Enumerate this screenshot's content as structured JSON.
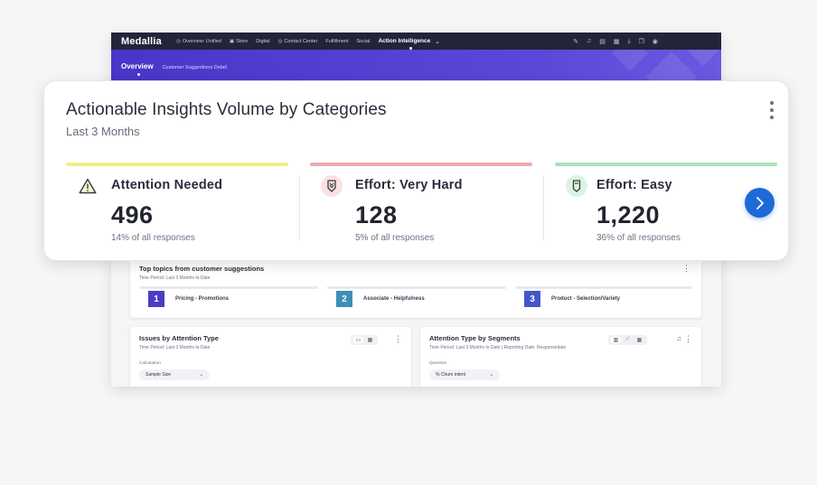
{
  "app": {
    "brand": "Medallia",
    "nav": [
      {
        "label": "Overview: Unified",
        "icon": "overview-icon"
      },
      {
        "label": "Store",
        "icon": "store-icon"
      },
      {
        "label": "Digital",
        "icon": ""
      },
      {
        "label": "Contact Center",
        "icon": "contact-center-icon"
      },
      {
        "label": "Fulfillment",
        "icon": ""
      },
      {
        "label": "Social",
        "icon": ""
      }
    ],
    "active_nav": "Action Intelligence",
    "subtabs": {
      "active": "Overview",
      "other": "Customer Suggestions Detail"
    }
  },
  "topics_panel": {
    "title": "Top topics from customer suggestions",
    "subtitle": "Time Period: Last 3 Months to Date",
    "topics": [
      {
        "num": "1",
        "label": "Pricing - Promotions",
        "color": "#4a3cc4"
      },
      {
        "num": "2",
        "label": "Associate - Helpfulness",
        "color": "#3d8fb5"
      },
      {
        "num": "3",
        "label": "Product - Selection/Variety",
        "color": "#4457c9"
      }
    ]
  },
  "issues_panel": {
    "title": "Issues by Attention Type",
    "subtitle": "Time Period: Last 3 Months to Date",
    "field_label": "Calculation",
    "field_value": "Sample Size"
  },
  "segments_panel": {
    "title": "Attention Type by Segments",
    "subtitle": "Time Period: Last 3 Months to Date | Reporting Date: Responsedate",
    "field_label": "Question",
    "field_value": "% Churn intent"
  },
  "card": {
    "title": "Actionable Insights Volume by Categories",
    "subtitle": "Last 3 Months",
    "metrics": [
      {
        "label": "Attention Needed",
        "value": "496",
        "pct": "14% of all responses",
        "bar_color": "#ecf08a",
        "icon": "warning-icon"
      },
      {
        "label": "Effort: Very Hard",
        "value": "128",
        "pct": "5% of all responses",
        "bar_color": "#eeaab0",
        "icon": "effort-very-hard-icon"
      },
      {
        "label": "Effort: Easy",
        "value": "1,220",
        "pct": "36% of all responses",
        "bar_color": "#a7e3b4",
        "icon": "effort-easy-icon"
      }
    ]
  }
}
